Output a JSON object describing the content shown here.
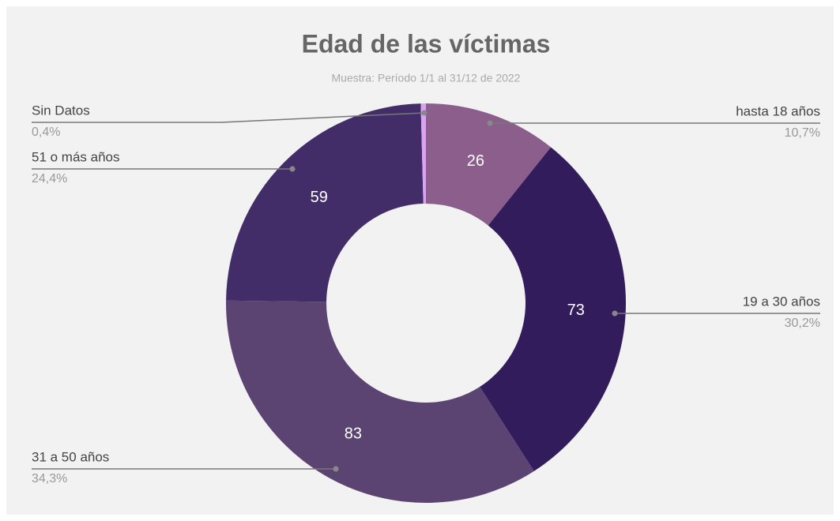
{
  "chart_data": {
    "type": "donut",
    "title": "Edad de las víctimas",
    "subtitle": "Muestra: Período 1/1 al 31/12 de 2022",
    "categories": [
      "hasta 18 años",
      "19 a 30 años",
      "31 a 50 años",
      "51 o más años",
      "Sin Datos"
    ],
    "values": [
      26,
      73,
      83,
      59,
      1
    ],
    "value_labels": [
      "26",
      "73",
      "83",
      "59",
      null
    ],
    "percent_labels": [
      "10,7%",
      "30,2%",
      "34,3%",
      "24,4%",
      "0,4%"
    ],
    "colors": [
      "#8b5e8c",
      "#331c5c",
      "#5b4472",
      "#432d68",
      "#d9a3f0"
    ]
  }
}
